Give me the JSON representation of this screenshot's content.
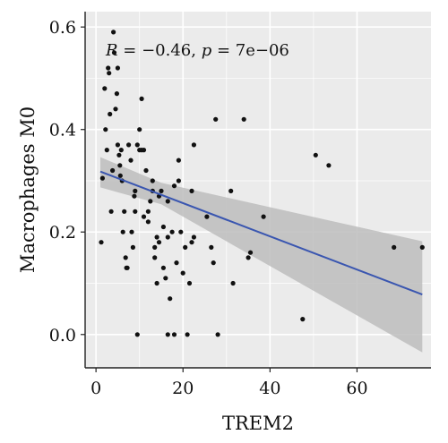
{
  "chart_data": {
    "type": "scatter",
    "xlabel": "TREM2",
    "ylabel": "Macrophages M0",
    "xlim": [
      -2.5,
      77
    ],
    "ylim": [
      -0.065,
      0.63
    ],
    "xticks": [
      0,
      20,
      40,
      60
    ],
    "yticks": [
      0.0,
      0.2,
      0.4,
      0.6
    ],
    "xtick_labels": [
      "0",
      "20",
      "40",
      "60"
    ],
    "ytick_labels": [
      "0.0",
      "0.2",
      "0.4",
      "0.6"
    ],
    "grid": true,
    "annotation": {
      "r_symbol": "R",
      "r_text": " = −0.46, ",
      "p_symbol": "p",
      "p_text": " = 7e−06"
    },
    "colors": {
      "points": "#111111",
      "fit_line": "#3a56b0",
      "ci_band": "#bdbdbd",
      "panel": "#ebebeb",
      "grid": "#ffffff"
    },
    "regression": {
      "x": [
        1,
        75
      ],
      "y": [
        0.318,
        0.078
      ],
      "ci_lower": [
        0.287,
        -0.035
      ],
      "ci_upper": [
        0.346,
        0.182
      ],
      "ci_mid_x": 15,
      "ci_mid_lower": [
        0.254
      ],
      "ci_mid_upper": [
        0.296
      ]
    },
    "points": [
      [
        1.2,
        0.18
      ],
      [
        1.5,
        0.305
      ],
      [
        2.0,
        0.48
      ],
      [
        2.2,
        0.4
      ],
      [
        2.5,
        0.36
      ],
      [
        2.8,
        0.52
      ],
      [
        3.0,
        0.51
      ],
      [
        3.2,
        0.43
      ],
      [
        3.5,
        0.24
      ],
      [
        3.8,
        0.32
      ],
      [
        4.0,
        0.59
      ],
      [
        4.2,
        0.55
      ],
      [
        4.5,
        0.44
      ],
      [
        4.8,
        0.47
      ],
      [
        5.0,
        0.52
      ],
      [
        5.0,
        0.37
      ],
      [
        5.3,
        0.35
      ],
      [
        5.5,
        0.33
      ],
      [
        5.6,
        0.31
      ],
      [
        5.8,
        0.36
      ],
      [
        6.0,
        0.3
      ],
      [
        6.2,
        0.2
      ],
      [
        6.5,
        0.24
      ],
      [
        6.8,
        0.15
      ],
      [
        7.0,
        0.13
      ],
      [
        7.2,
        0.13
      ],
      [
        7.5,
        0.37
      ],
      [
        8.0,
        0.34
      ],
      [
        8.2,
        0.2
      ],
      [
        8.5,
        0.17
      ],
      [
        8.8,
        0.27
      ],
      [
        9.0,
        0.28
      ],
      [
        9.0,
        0.24
      ],
      [
        9.5,
        0.37
      ],
      [
        10.0,
        0.36
      ],
      [
        10.0,
        0.4
      ],
      [
        10.5,
        0.46
      ],
      [
        10.5,
        0.36
      ],
      [
        11.0,
        0.36
      ],
      [
        11.0,
        0.23
      ],
      [
        11.5,
        0.32
      ],
      [
        12.0,
        0.24
      ],
      [
        12.0,
        0.22
      ],
      [
        12.5,
        0.26
      ],
      [
        13.0,
        0.28
      ],
      [
        13.0,
        0.3
      ],
      [
        13.5,
        0.17
      ],
      [
        13.5,
        0.15
      ],
      [
        14.0,
        0.1
      ],
      [
        14.0,
        0.19
      ],
      [
        14.5,
        0.18
      ],
      [
        14.5,
        0.27
      ],
      [
        15.0,
        0.28
      ],
      [
        15.5,
        0.21
      ],
      [
        15.5,
        0.13
      ],
      [
        16.0,
        0.11
      ],
      [
        16.5,
        0.26
      ],
      [
        16.5,
        0.19
      ],
      [
        17.0,
        0.07
      ],
      [
        17.5,
        0.2
      ],
      [
        18.0,
        0.29
      ],
      [
        18.5,
        0.14
      ],
      [
        19.0,
        0.3
      ],
      [
        19.0,
        0.34
      ],
      [
        19.5,
        0.2
      ],
      [
        20.0,
        0.12
      ],
      [
        20.5,
        0.17
      ],
      [
        21.0,
        0.0
      ],
      [
        21.5,
        0.1
      ],
      [
        22.0,
        0.28
      ],
      [
        22.0,
        0.18
      ],
      [
        22.5,
        0.19
      ],
      [
        16.5,
        0.0
      ],
      [
        18.0,
        0.0
      ],
      [
        9.5,
        0.0
      ],
      [
        22.5,
        0.37
      ],
      [
        25.5,
        0.23
      ],
      [
        26.5,
        0.17
      ],
      [
        27.0,
        0.14
      ],
      [
        27.5,
        0.42
      ],
      [
        28.0,
        0.0
      ],
      [
        31.0,
        0.28
      ],
      [
        31.5,
        0.1
      ],
      [
        34.0,
        0.42
      ],
      [
        35.0,
        0.15
      ],
      [
        35.5,
        0.16
      ],
      [
        38.5,
        0.23
      ],
      [
        47.5,
        0.03
      ],
      [
        50.5,
        0.35
      ],
      [
        53.5,
        0.33
      ],
      [
        68.5,
        0.17
      ],
      [
        75.0,
        0.17
      ]
    ]
  }
}
